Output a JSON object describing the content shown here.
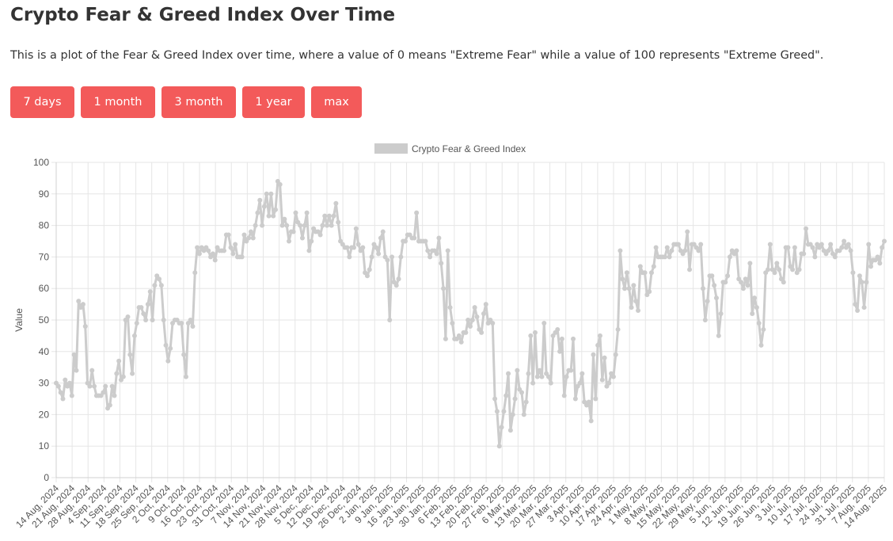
{
  "page": {
    "title": "Crypto Fear & Greed Index Over Time",
    "description": "This is a plot of the Fear & Greed Index over time, where a value of 0 means \"Extreme Fear\" while a value of 100 represents \"Extreme Greed\"."
  },
  "range_buttons": [
    {
      "label": "7 days"
    },
    {
      "label": "1 month"
    },
    {
      "label": "3 month"
    },
    {
      "label": "1 year"
    },
    {
      "label": "max"
    }
  ],
  "colors": {
    "button_bg": "#f35a5a",
    "series": "#cccccc",
    "grid": "#e6e6e6"
  },
  "chart_data": {
    "type": "line",
    "ylabel": "Value",
    "xlabel": "",
    "ylim": [
      0,
      100
    ],
    "y_ticks": [
      0,
      10,
      20,
      30,
      40,
      50,
      60,
      70,
      80,
      90,
      100
    ],
    "grid": true,
    "legend_position": "top-center",
    "x_tick_labels": [
      "14 Aug, 2024",
      "21 Aug, 2024",
      "28 Aug, 2024",
      "4 Sep, 2024",
      "11 Sep, 2024",
      "18 Sep, 2024",
      "25 Sep, 2024",
      "2 Oct, 2024",
      "9 Oct, 2024",
      "16 Oct, 2024",
      "23 Oct, 2024",
      "31 Oct, 2024",
      "7 Nov, 2024",
      "14 Nov, 2024",
      "21 Nov, 2024",
      "28 Nov, 2024",
      "5 Dec, 2024",
      "12 Dec, 2024",
      "19 Dec, 2024",
      "26 Dec, 2024",
      "2 Jan, 2025",
      "9 Jan, 2025",
      "16 Jan, 2025",
      "23 Jan, 2025",
      "30 Jan, 2025",
      "6 Feb, 2025",
      "13 Feb, 2025",
      "20 Feb, 2025",
      "27 Feb, 2025",
      "6 Mar, 2025",
      "13 Mar, 2025",
      "20 Mar, 2025",
      "27 Mar, 2025",
      "3 Apr, 2025",
      "10 Apr, 2025",
      "17 Apr, 2025",
      "24 Apr, 2025",
      "1 May, 2025",
      "8 May, 2025",
      "15 May, 2025",
      "22 May, 2025",
      "29 May, 2025",
      "5 Jun, 2025",
      "12 Jun, 2025",
      "19 Jun, 2025",
      "26 Jun, 2025",
      "3 Jul, 2025",
      "10 Jul, 2025",
      "17 Jul, 2025",
      "24 Jul, 2025",
      "31 Jul, 2025",
      "7 Aug, 2025",
      "14 Aug, 2025"
    ],
    "series": [
      {
        "name": "Crypto Fear & Greed Index",
        "start_date": "14 Aug, 2024",
        "end_date": "14 Aug, 2025",
        "values": [
          30,
          29,
          27,
          25,
          31,
          29,
          30,
          26,
          39,
          34,
          56,
          54,
          55,
          48,
          30,
          29,
          34,
          29,
          26,
          26,
          26,
          27,
          29,
          22,
          23,
          29,
          26,
          33,
          37,
          31,
          32,
          50,
          51,
          39,
          33,
          45,
          49,
          54,
          54,
          52,
          50,
          55,
          59,
          50,
          61,
          64,
          63,
          61,
          50,
          42,
          37,
          41,
          49,
          50,
          50,
          49,
          49,
          39,
          32,
          49,
          50,
          48,
          65,
          73,
          71,
          73,
          72,
          73,
          72,
          70,
          71,
          69,
          73,
          72,
          72,
          72,
          77,
          77,
          73,
          71,
          74,
          70,
          70,
          70,
          77,
          75,
          76,
          78,
          76,
          80,
          84,
          88,
          80,
          86,
          90,
          83,
          90,
          83,
          85,
          94,
          93,
          80,
          82,
          80,
          75,
          78,
          78,
          84,
          81,
          80,
          76,
          80,
          84,
          72,
          75,
          79,
          78,
          78,
          77,
          80,
          83,
          80,
          83,
          80,
          83,
          87,
          81,
          75,
          74,
          73,
          73,
          70,
          73,
          73,
          79,
          74,
          72,
          73,
          65,
          64,
          66,
          70,
          74,
          73,
          71,
          76,
          78,
          70,
          69,
          50,
          70,
          62,
          61,
          63,
          70,
          75,
          75,
          77,
          77,
          76,
          76,
          84,
          75,
          75,
          75,
          75,
          72,
          70,
          72,
          72,
          71,
          76,
          68,
          60,
          44,
          72,
          54,
          49,
          44,
          44,
          45,
          43,
          46,
          46,
          50,
          48,
          50,
          54,
          51,
          47,
          46,
          52,
          55,
          49,
          50,
          49,
          25,
          21,
          10,
          16,
          21,
          26,
          33,
          15,
          20,
          25,
          34,
          28,
          27,
          20,
          24,
          33,
          45,
          30,
          46,
          32,
          34,
          32,
          49,
          33,
          32,
          30,
          45,
          46,
          47,
          40,
          44,
          26,
          32,
          34,
          34,
          44,
          25,
          29,
          30,
          33,
          24,
          23,
          24,
          18,
          39,
          25,
          42,
          45,
          31,
          38,
          29,
          30,
          33,
          32,
          39,
          47,
          72,
          63,
          60,
          65,
          60,
          54,
          61,
          56,
          53,
          67,
          65,
          65,
          58,
          59,
          65,
          67,
          73,
          70,
          70,
          70,
          70,
          73,
          70,
          72,
          74,
          74,
          74,
          72,
          71,
          72,
          78,
          66,
          74,
          74,
          73,
          72,
          74,
          60,
          50,
          56,
          64,
          64,
          61,
          57,
          45,
          52,
          62,
          62,
          64,
          70,
          72,
          71,
          72,
          63,
          62,
          60,
          63,
          61,
          68,
          52,
          57,
          54,
          49,
          42,
          47,
          65,
          66,
          74,
          66,
          65,
          68,
          66,
          63,
          62,
          73,
          73,
          67,
          66,
          73,
          65,
          66,
          71,
          71,
          79,
          74,
          74,
          73,
          70,
          74,
          73,
          74,
          72,
          71,
          72,
          74,
          71,
          70,
          72,
          72,
          73,
          75,
          73,
          74,
          72,
          65,
          55,
          53,
          64,
          62,
          54,
          62,
          74,
          67,
          69,
          69,
          70,
          68,
          73,
          75
        ]
      }
    ]
  }
}
